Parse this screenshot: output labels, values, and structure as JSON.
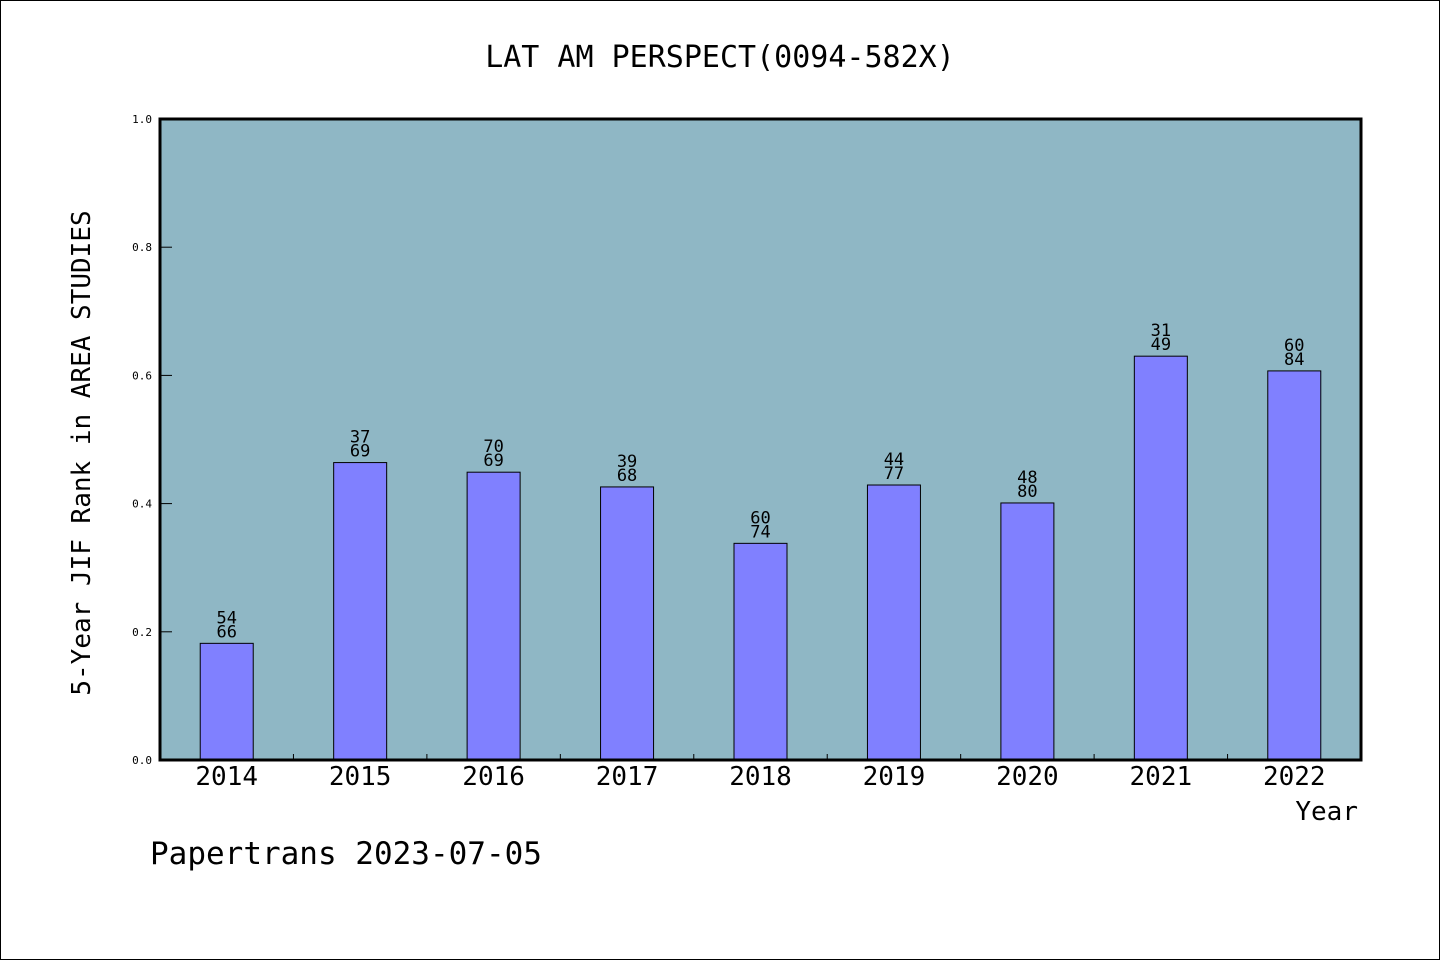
{
  "chart_data": {
    "type": "bar",
    "title": "LAT AM PERSPECT(0094-582X)",
    "xlabel": "Year",
    "ylabel": "5-Year JIF Rank in AREA STUDIES",
    "ylim": [
      0,
      1.0
    ],
    "yticks": [
      "0.0",
      "0.2",
      "0.4",
      "0.6",
      "0.8",
      "1.0"
    ],
    "categories": [
      "2014",
      "2015",
      "2016",
      "2017",
      "2018",
      "2019",
      "2020",
      "2021",
      "2022"
    ],
    "values": [
      0.182,
      0.464,
      0.449,
      0.426,
      0.338,
      0.429,
      0.401,
      0.63,
      0.607
    ],
    "label_top": [
      "54",
      "37",
      "70",
      "39",
      "60",
      "44",
      "48",
      "31",
      "60"
    ],
    "label_bottom": [
      "66",
      "69",
      "69",
      "68",
      "74",
      "77",
      "80",
      "49",
      "84"
    ],
    "grid": false,
    "colors": {
      "plot_background": "#8fb7c5",
      "bar_fill": "#8080ff",
      "bar_stroke": "#000000"
    }
  },
  "footer": "Papertrans 2023-07-05"
}
